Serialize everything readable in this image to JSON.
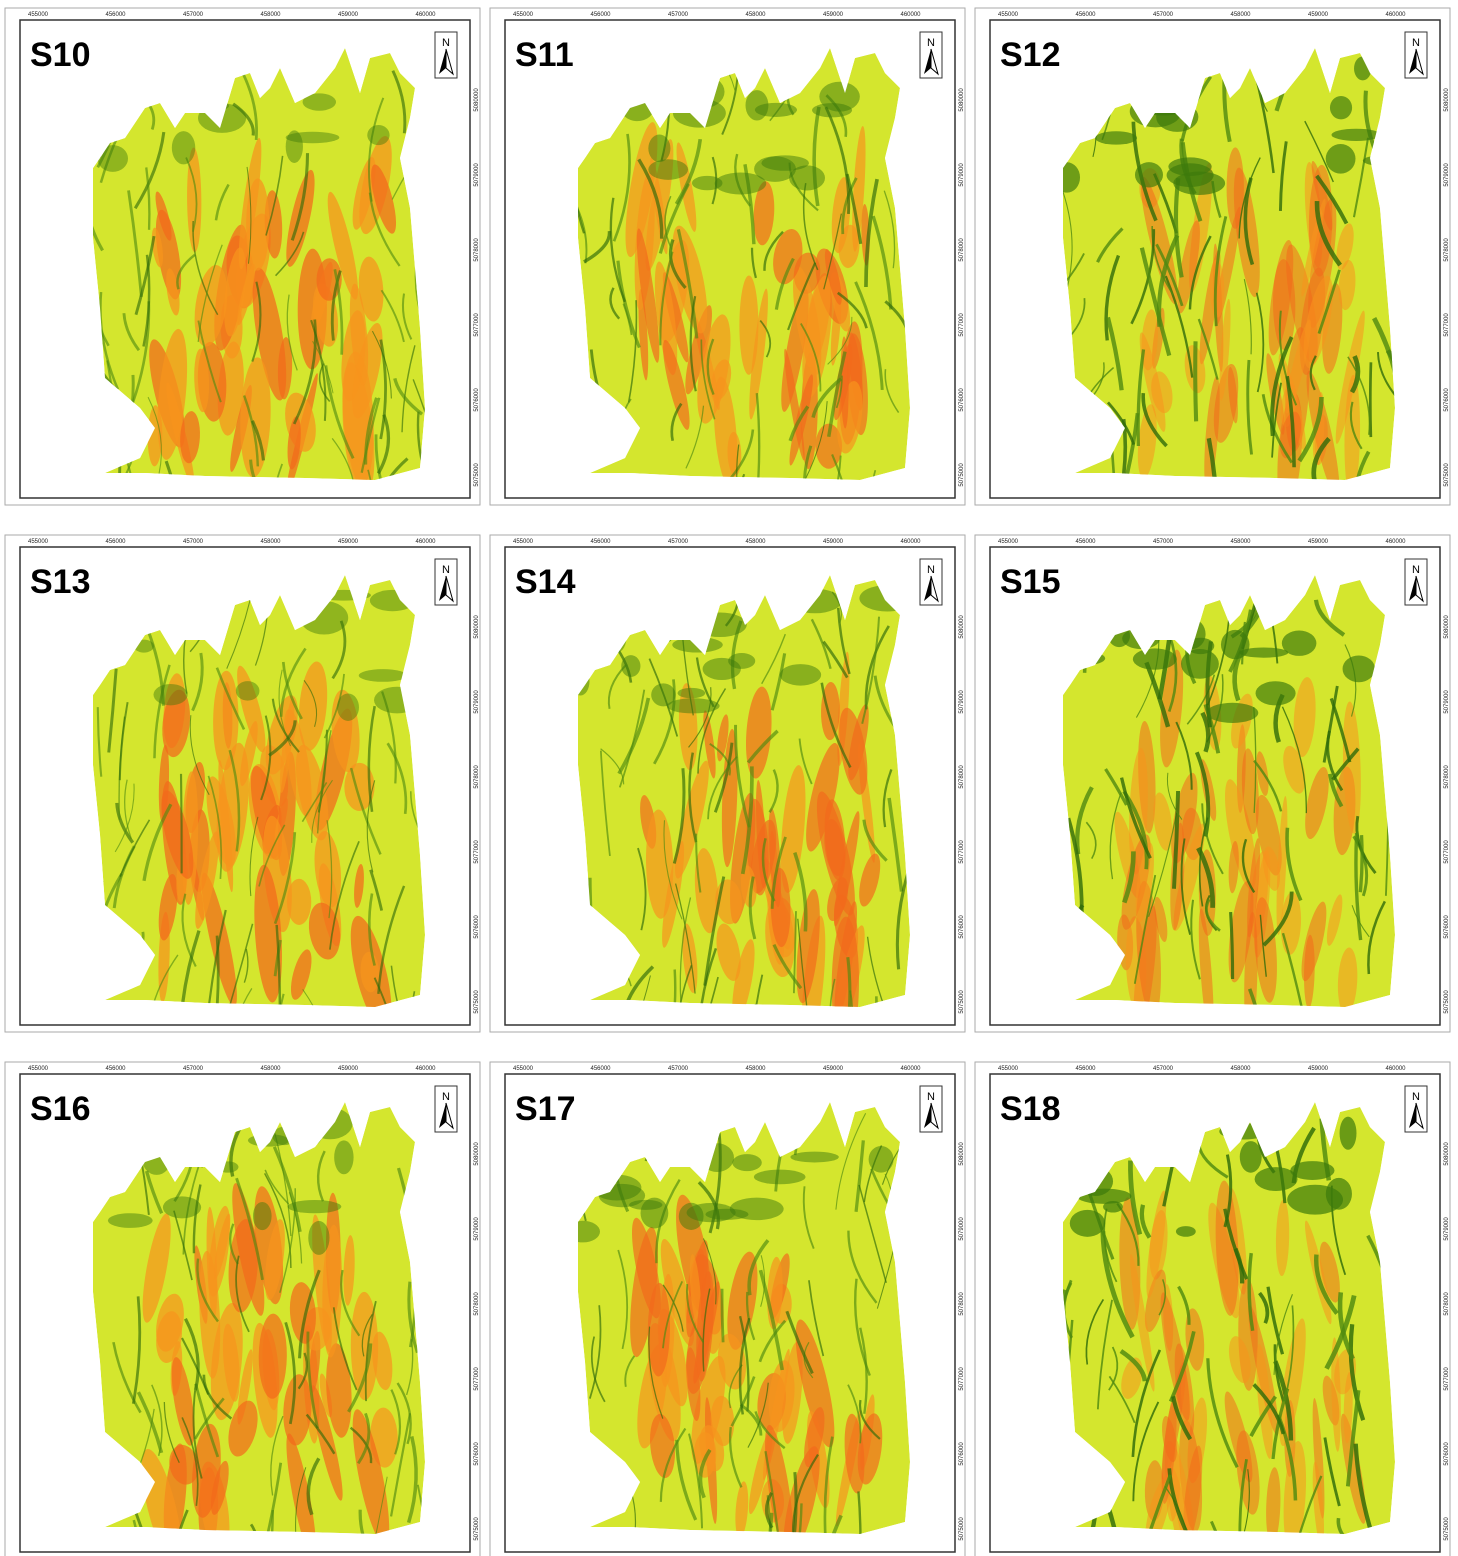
{
  "panels": [
    {
      "title": "S10"
    },
    {
      "title": "S11"
    },
    {
      "title": "S12"
    },
    {
      "title": "S13"
    },
    {
      "title": "S14"
    },
    {
      "title": "S15"
    },
    {
      "title": "S16"
    },
    {
      "title": "S17"
    },
    {
      "title": "S18"
    }
  ],
  "x_labels": [
    "455000",
    "456000",
    "457000",
    "458000",
    "459000",
    "460000"
  ],
  "y_labels": [
    "5080000",
    "5079000",
    "5078000",
    "5077000",
    "5076000",
    "5075000"
  ],
  "north": "N"
}
